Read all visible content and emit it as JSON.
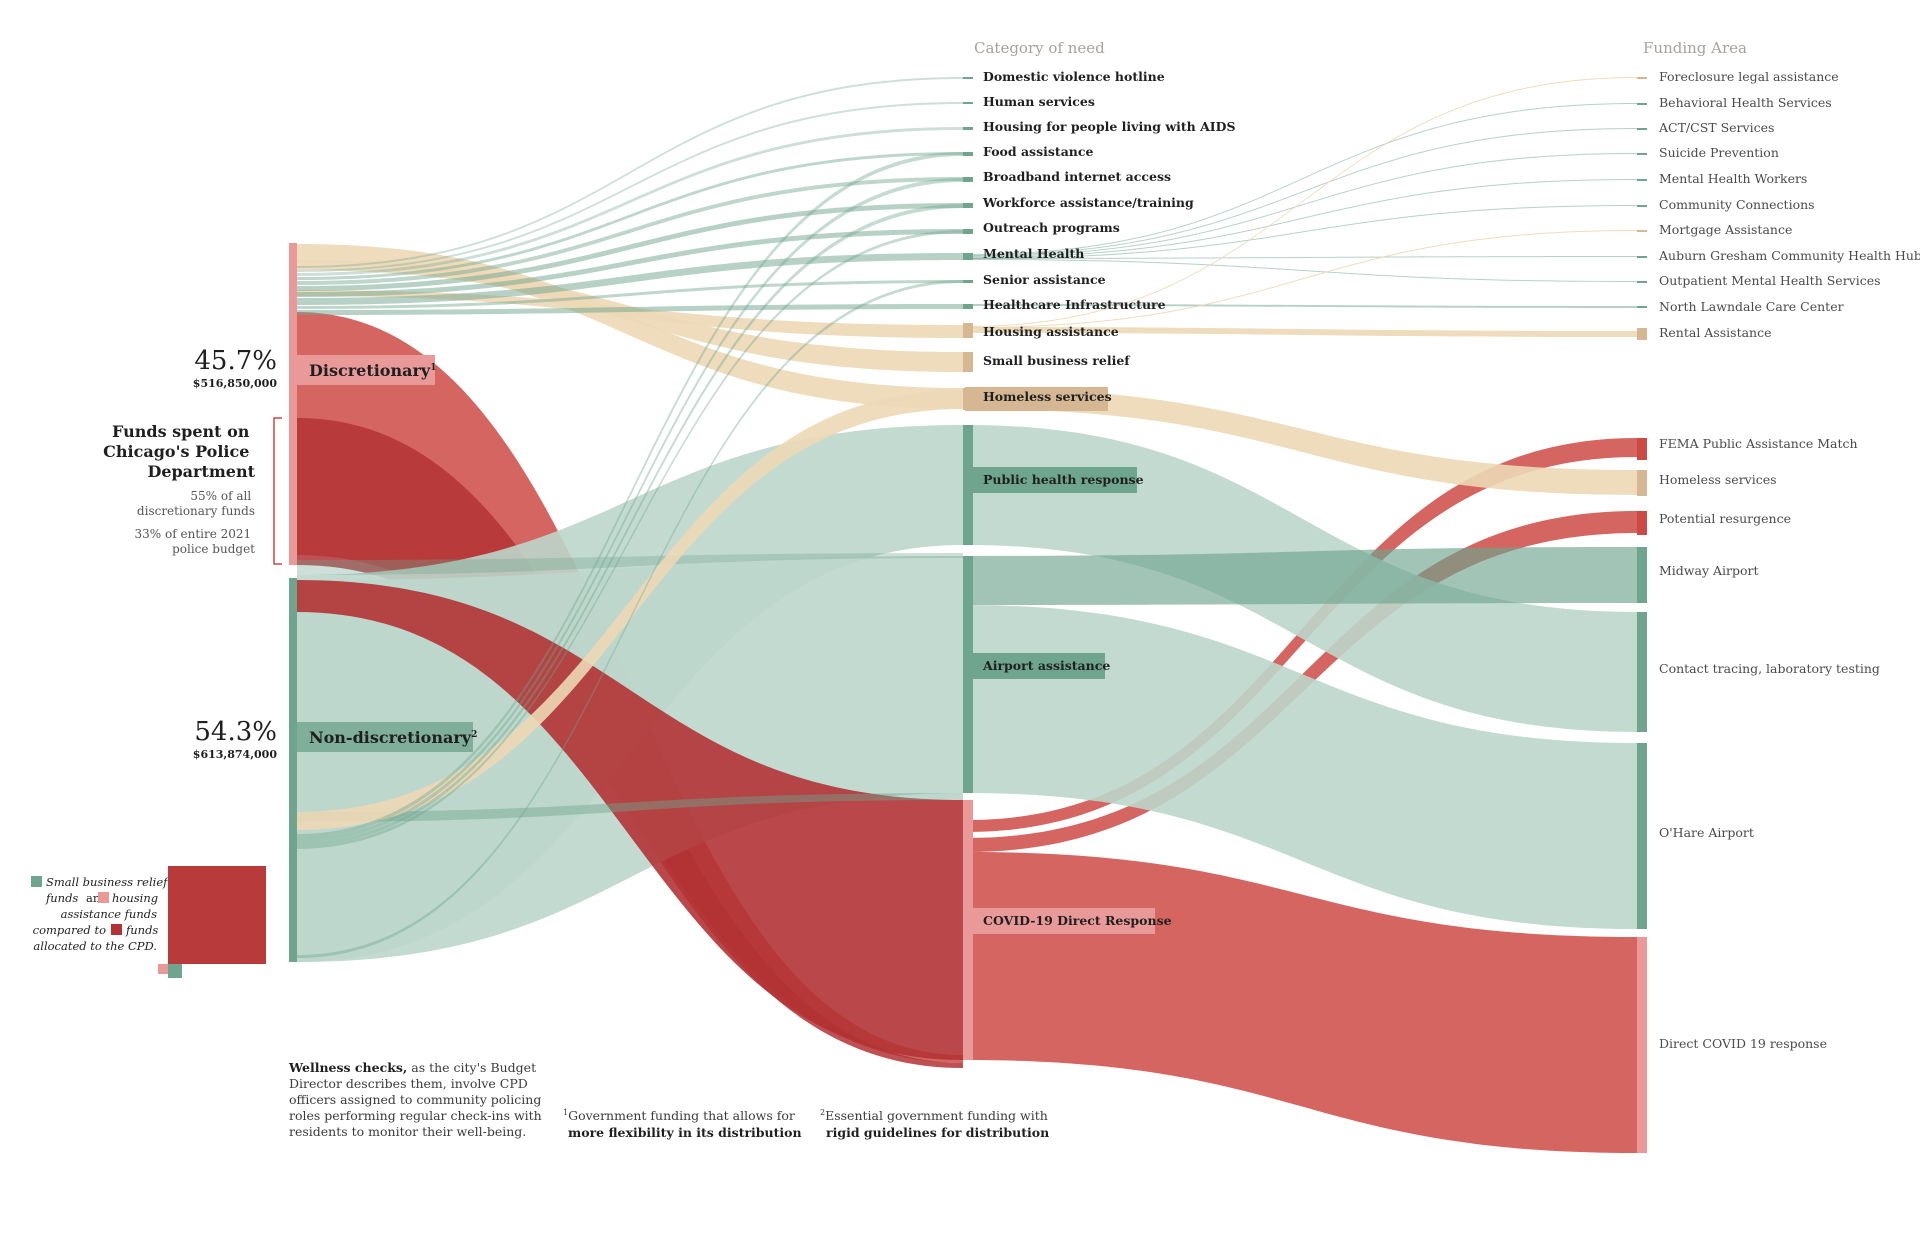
{
  "headers": {
    "category": "Category of need",
    "funding": "Funding Area"
  },
  "sources": {
    "discretionary": {
      "label": "Discretionary",
      "sup": "1",
      "pct": "45.7%",
      "amount": "$516,850,000"
    },
    "nondiscretionary": {
      "label": "Non-discretionary",
      "sup": "2",
      "pct": "54.3%",
      "amount": "$613,874,000"
    }
  },
  "cpd": {
    "title": [
      "Funds spent on",
      "Chicago's Police",
      "Department"
    ],
    "line1": [
      "55% of all",
      "discretionary funds"
    ],
    "line2": [
      "33% of entire 2021",
      "police budget"
    ]
  },
  "legend": {
    "a": "Small business relief",
    "b1": "funds",
    "b2": "and",
    "b3": "housing",
    "c": "assistance funds",
    "d1": "compared to",
    "d2": "funds",
    "e": "allocated to the CPD."
  },
  "notes": {
    "wellness_bold": "Wellness checks,",
    "wellness_rest": [
      "as the city's Budget",
      "Director describes them, involve CPD",
      "officers assigned to community policing",
      "roles performing regular check-ins with",
      "residents to monitor their well-being."
    ],
    "fn1_a": "Government funding that allows for",
    "fn1_b": "more flexibility in its distribution",
    "fn2_a": "Essential government funding with",
    "fn2_b": "rigid guidelines for distribution"
  },
  "colors": {
    "green": "#6fa48f",
    "green_light": "#bcd6cb",
    "red": "#cc4a44",
    "red_dark": "#b33335",
    "red_light": "#e99a98",
    "tan": "#ecd8b6",
    "tan_node": "#d5b893"
  },
  "chart_data": {
    "type": "sankey",
    "level1": [
      "Discretionary",
      "Non-discretionary"
    ],
    "level2": [
      "Domestic violence hotline",
      "Human services",
      "Housing for people living with AIDS",
      "Food assistance",
      "Broadband internet access",
      "Workforce assistance/training",
      "Outreach programs",
      "Mental Health",
      "Senior assistance",
      "Healthcare Infrastructure",
      "Housing assistance",
      "Small business relief",
      "Homeless services",
      "Public health response",
      "Airport assistance",
      "COVID-19 Direct Response"
    ],
    "level3": [
      "Foreclosure legal assistance",
      "Behavioral Health Services",
      "ACT/CST Services",
      "Suicide Prevention",
      "Mental Health Workers",
      "Community Connections",
      "Mortgage Assistance",
      "Auburn Gresham Community Health Hub",
      "Outpatient Mental Health Services",
      "North Lawndale Care Center",
      "Rental Assistance",
      "FEMA Public Assistance Match",
      "Homeless services",
      "Potential resurgence",
      "Midway Airport",
      "Contact tracing, laboratory testing",
      "O'Hare Airport",
      "Direct COVID 19 response"
    ],
    "level1_values": [
      516850000,
      613874000
    ],
    "level1_shares_pct": [
      45.7,
      54.3
    ],
    "cpd_share_of_discretionary_pct": 55,
    "cpd_share_of_police_budget_pct": 33
  }
}
